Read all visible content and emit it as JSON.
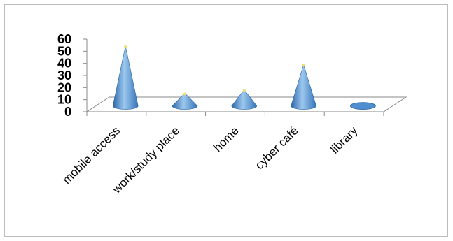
{
  "chart_data": {
    "type": "bar",
    "shape": "cone-3d",
    "categories": [
      "mobile access",
      "work/study place",
      "home",
      "cyber café",
      "library"
    ],
    "values": [
      52,
      11,
      14,
      36,
      1
    ],
    "ylim": [
      0,
      60
    ],
    "yticks": [
      0,
      10,
      20,
      30,
      40,
      50,
      60
    ],
    "grid": false,
    "legend": "none",
    "colors": {
      "cone_light": "#9cc8ee",
      "cone_mid": "#4f8fd0",
      "cone_dark": "#2c66a8",
      "tip": "#e8e070",
      "axis": "#8a8a8a"
    }
  }
}
